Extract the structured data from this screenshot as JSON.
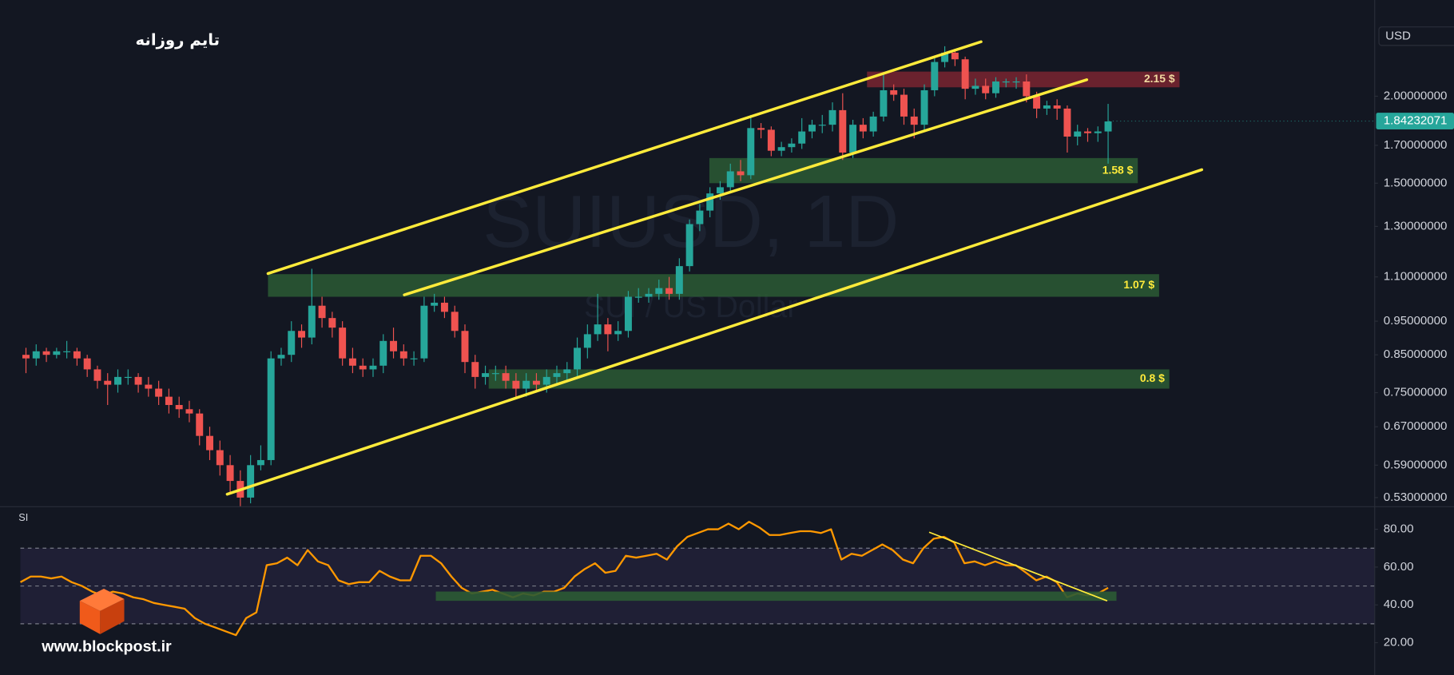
{
  "chart_data": {
    "type": "candlestick",
    "title": "تایم روزانه",
    "currency": "USD",
    "watermark": "SUIUSD, 1D",
    "watermark_subtitle": "SUI / US Dollar",
    "site": "www.blockpost.ir",
    "last_price": 1.84232071,
    "log_scale": true,
    "up_color": "#26a69a",
    "down_color": "#ef5350",
    "ylim": [
      0.515,
      2.75
    ],
    "yticks": [
      {
        "value": 2,
        "label": "2.00000000"
      },
      {
        "value": 1.7,
        "label": "1.70000000"
      },
      {
        "value": 1.5,
        "label": "1.50000000"
      },
      {
        "value": 1.3,
        "label": "1.30000000"
      },
      {
        "value": 1.1,
        "label": "1.10000000"
      },
      {
        "value": 0.95,
        "label": "0.95000000"
      },
      {
        "value": 0.85,
        "label": "0.85000000"
      },
      {
        "value": 0.75,
        "label": "0.75000000"
      },
      {
        "value": 0.67,
        "label": "0.67000000"
      },
      {
        "value": 0.59,
        "label": "0.59000000"
      },
      {
        "value": 0.53,
        "label": "0.53000000"
      }
    ],
    "open": [
      0.85,
      0.84,
      0.86,
      0.85,
      0.86,
      0.86,
      0.84,
      0.81,
      0.78,
      0.77,
      0.79,
      0.79,
      0.77,
      0.76,
      0.74,
      0.72,
      0.71,
      0.7,
      0.65,
      0.62,
      0.59,
      0.56,
      0.53,
      0.59,
      0.6,
      0.84,
      0.85,
      0.92,
      0.9,
      1.0,
      0.96,
      0.93,
      0.84,
      0.82,
      0.81,
      0.82,
      0.89,
      0.86,
      0.84,
      0.84,
      1.0,
      1.01,
      0.98,
      0.92,
      0.83,
      0.79,
      0.8,
      0.8,
      0.78,
      0.76,
      0.78,
      0.77,
      0.79,
      0.8,
      0.81,
      0.87,
      0.91,
      0.94,
      0.91,
      0.92,
      1.03,
      1.03,
      1.04,
      1.06,
      1.04,
      1.14,
      1.31,
      1.37,
      1.45,
      1.48,
      1.56,
      1.54,
      1.8,
      1.79,
      1.67,
      1.69,
      1.71,
      1.78,
      1.82,
      1.82,
      1.91,
      1.66,
      1.82,
      1.78,
      1.87,
      2.04,
      2.01,
      1.87,
      1.82,
      2.04,
      2.24,
      2.31,
      2.26,
      2.05,
      2.07,
      2.02,
      2.1,
      2.1,
      2.1,
      2.0,
      1.92,
      1.94,
      1.92,
      1.75,
      1.78,
      1.77,
      1.78
    ],
    "high": [
      0.87,
      0.88,
      0.87,
      0.87,
      0.89,
      0.87,
      0.85,
      0.82,
      0.8,
      0.81,
      0.81,
      0.8,
      0.79,
      0.78,
      0.76,
      0.74,
      0.73,
      0.71,
      0.67,
      0.64,
      0.61,
      0.58,
      0.61,
      0.63,
      0.86,
      0.87,
      0.95,
      0.94,
      1.13,
      1.03,
      0.98,
      0.95,
      0.87,
      0.84,
      0.84,
      0.91,
      0.93,
      0.88,
      0.86,
      1.03,
      1.04,
      1.03,
      1.0,
      0.94,
      0.85,
      0.82,
      0.82,
      0.82,
      0.8,
      0.8,
      0.8,
      0.81,
      0.82,
      0.83,
      0.9,
      0.94,
      1.04,
      0.96,
      0.95,
      1.05,
      1.06,
      1.06,
      1.09,
      1.1,
      1.17,
      1.33,
      1.4,
      1.48,
      1.51,
      1.6,
      1.62,
      1.88,
      1.83,
      1.81,
      1.72,
      1.74,
      1.86,
      1.85,
      1.88,
      1.96,
      2.02,
      1.85,
      1.86,
      1.9,
      2.15,
      2.08,
      2.05,
      1.92,
      2.08,
      2.28,
      2.36,
      2.34,
      2.28,
      2.12,
      2.12,
      2.13,
      2.12,
      2.13,
      2.15,
      2.03,
      1.97,
      1.98,
      1.94,
      1.82,
      1.8,
      1.81,
      1.95
    ],
    "low": [
      0.8,
      0.82,
      0.83,
      0.84,
      0.84,
      0.82,
      0.79,
      0.76,
      0.72,
      0.75,
      0.77,
      0.75,
      0.74,
      0.72,
      0.7,
      0.69,
      0.68,
      0.63,
      0.6,
      0.57,
      0.54,
      0.515,
      0.52,
      0.58,
      0.59,
      0.82,
      0.83,
      0.87,
      0.88,
      0.93,
      0.9,
      0.82,
      0.8,
      0.79,
      0.79,
      0.8,
      0.84,
      0.82,
      0.82,
      0.83,
      0.98,
      0.96,
      0.9,
      0.8,
      0.76,
      0.77,
      0.78,
      0.76,
      0.74,
      0.74,
      0.75,
      0.75,
      0.77,
      0.78,
      0.79,
      0.84,
      0.89,
      0.86,
      0.89,
      0.9,
      1.01,
      1.01,
      1.02,
      1.02,
      1.02,
      1.12,
      1.28,
      1.34,
      1.42,
      1.45,
      1.51,
      1.52,
      1.74,
      1.64,
      1.64,
      1.66,
      1.68,
      1.74,
      1.77,
      1.78,
      1.62,
      1.63,
      1.74,
      1.75,
      1.84,
      1.97,
      1.82,
      1.74,
      1.79,
      2.0,
      2.2,
      2.21,
      1.98,
      2.01,
      1.98,
      1.99,
      2.06,
      2.05,
      1.96,
      1.86,
      1.88,
      1.85,
      1.66,
      1.7,
      1.72,
      1.72,
      1.6
    ],
    "close": [
      0.84,
      0.86,
      0.85,
      0.86,
      0.86,
      0.84,
      0.81,
      0.78,
      0.77,
      0.79,
      0.79,
      0.77,
      0.76,
      0.74,
      0.72,
      0.71,
      0.7,
      0.65,
      0.62,
      0.59,
      0.56,
      0.53,
      0.59,
      0.6,
      0.84,
      0.85,
      0.92,
      0.9,
      1.0,
      0.96,
      0.93,
      0.84,
      0.82,
      0.81,
      0.82,
      0.89,
      0.86,
      0.84,
      0.84,
      1.0,
      1.01,
      0.98,
      0.92,
      0.83,
      0.79,
      0.8,
      0.8,
      0.78,
      0.76,
      0.78,
      0.77,
      0.79,
      0.8,
      0.81,
      0.87,
      0.91,
      0.94,
      0.91,
      0.92,
      1.03,
      1.03,
      1.04,
      1.06,
      1.04,
      1.14,
      1.31,
      1.37,
      1.45,
      1.48,
      1.56,
      1.54,
      1.8,
      1.79,
      1.67,
      1.69,
      1.71,
      1.78,
      1.82,
      1.82,
      1.91,
      1.66,
      1.82,
      1.78,
      1.87,
      2.04,
      2.01,
      1.87,
      1.82,
      2.04,
      2.24,
      2.31,
      2.26,
      2.05,
      2.07,
      2.02,
      2.1,
      2.1,
      2.1,
      2.0,
      1.92,
      1.94,
      1.92,
      1.75,
      1.78,
      1.77,
      1.78,
      1.84
    ],
    "zones": [
      {
        "label": "2.15 $",
        "range": [
          2.06,
          2.17
        ],
        "color": "#7a2430",
        "label_color": "#f0d9a0"
      },
      {
        "label": "1.58 $",
        "range": [
          1.5,
          1.63
        ],
        "color": "#2b5a34",
        "label_color": "#ffeb3b"
      },
      {
        "label": "1.07 $",
        "range": [
          1.03,
          1.11
        ],
        "color": "#2b5a34",
        "label_color": "#ffeb3b"
      },
      {
        "label": "0.8 $",
        "range": [
          0.76,
          0.81
        ],
        "color": "#2b5a34",
        "label_color": "#ffeb3b"
      }
    ],
    "indicator": {
      "name": "SI",
      "type": "line",
      "color": "#ff9800",
      "values": [
        52,
        55,
        55,
        54,
        55,
        52,
        50,
        47,
        45,
        47,
        46,
        44,
        43,
        41,
        40,
        39,
        38,
        33,
        30,
        28,
        26,
        24,
        33,
        36,
        61,
        62,
        65,
        61,
        69,
        63,
        61,
        53,
        51,
        52,
        52,
        58,
        55,
        53,
        53,
        66,
        66,
        62,
        55,
        49,
        46,
        47,
        48,
        46,
        44,
        46,
        45,
        47,
        47,
        49,
        55,
        59,
        62,
        57,
        58,
        66,
        65,
        66,
        67,
        64,
        71,
        76,
        78,
        80,
        80,
        83,
        80,
        84,
        81,
        77,
        77,
        78,
        79,
        79,
        78,
        80,
        64,
        67,
        66,
        69,
        72,
        69,
        64,
        62,
        70,
        75,
        76,
        73,
        62,
        63,
        61,
        63,
        61,
        61,
        57,
        53,
        55,
        52,
        44,
        46,
        45,
        46,
        49
      ],
      "ylim": [
        2.9,
        91.7
      ],
      "yticks": [
        {
          "value": 80,
          "label": "80.00"
        },
        {
          "value": 60,
          "label": "60.00"
        },
        {
          "value": 40,
          "label": "40.00"
        },
        {
          "value": 20,
          "label": "20.00"
        }
      ],
      "levels": [
        30,
        50,
        70
      ]
    }
  }
}
